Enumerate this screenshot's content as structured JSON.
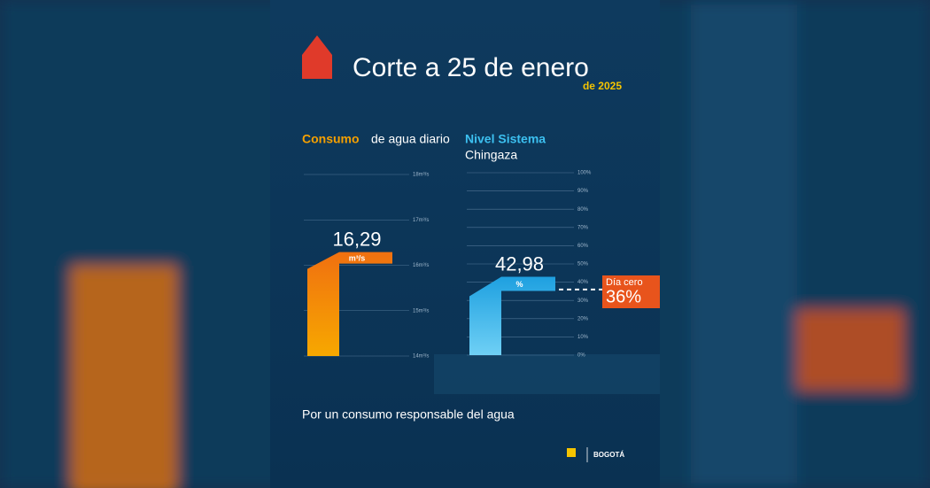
{
  "title": "Corte a 25 de enero",
  "subtitle": "de 2025",
  "footer": "Por un consumo responsable del agua",
  "logo": "BOGOTÁ",
  "chart_data": [
    {
      "type": "bar",
      "title": "Consumo",
      "subtitle": "de agua diario",
      "color": "#f28a10",
      "values": [
        16.29
      ],
      "value_labels": [
        "16,29"
      ],
      "unit": "m³/s",
      "ylim": [
        14,
        18
      ],
      "yticks": [
        {
          "value": 14,
          "label": "14m³/s"
        },
        {
          "value": 15,
          "label": "15m³/s"
        },
        {
          "value": 16,
          "label": "16m³/s"
        },
        {
          "value": 17,
          "label": "17m³/s"
        },
        {
          "value": 18,
          "label": "18m³/s"
        }
      ],
      "grid": true
    },
    {
      "type": "bar",
      "title": "Nivel Sistema",
      "subtitle": "Chingaza",
      "color": "#2ab0e8",
      "values": [
        42.98
      ],
      "value_labels": [
        "42,98"
      ],
      "unit": "%",
      "ylim": [
        0,
        100
      ],
      "yticks": [
        {
          "value": 0,
          "label": "0%"
        },
        {
          "value": 10,
          "label": "10%"
        },
        {
          "value": 20,
          "label": "20%"
        },
        {
          "value": 30,
          "label": "30%"
        },
        {
          "value": 40,
          "label": "40%"
        },
        {
          "value": 50,
          "label": "50%"
        },
        {
          "value": 60,
          "label": "60%"
        },
        {
          "value": 70,
          "label": "70%"
        },
        {
          "value": 80,
          "label": "80%"
        },
        {
          "value": 90,
          "label": "90%"
        },
        {
          "value": 100,
          "label": "100%"
        }
      ],
      "grid": true,
      "threshold": {
        "label": "Día cero",
        "value": 36,
        "value_label": "36%"
      }
    }
  ]
}
